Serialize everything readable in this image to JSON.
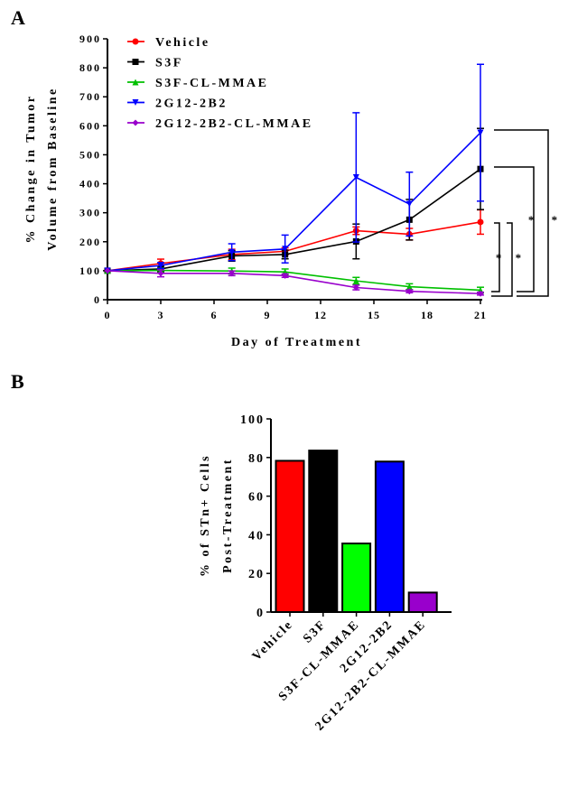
{
  "chart_data": [
    {
      "panel_label": "A",
      "type": "line",
      "xlabel": "Day of Treatment",
      "ylabel": [
        "% Change in Tumor",
        "Volume from Baseline"
      ],
      "xlim": [
        0,
        21
      ],
      "ylim": [
        0,
        900
      ],
      "xticks": [
        0,
        3,
        6,
        9,
        12,
        15,
        18,
        21
      ],
      "yticks": [
        0,
        100,
        200,
        300,
        400,
        500,
        600,
        700,
        800,
        900
      ],
      "x": [
        0,
        3,
        7,
        10,
        14,
        17,
        21
      ],
      "legend_position": "top-left",
      "series": [
        {
          "name": "Vehicle",
          "color": "#ff0000",
          "marker": "circle",
          "values": [
            100,
            125,
            156,
            167,
            238,
            226,
            268
          ],
          "errors": [
            0,
            15,
            18,
            12,
            13,
            20,
            42
          ]
        },
        {
          "name": "S3F",
          "color": "#000000",
          "marker": "square",
          "values": [
            100,
            106,
            151,
            156,
            201,
            276,
            451
          ],
          "errors": [
            0,
            10,
            18,
            15,
            60,
            70,
            140
          ]
        },
        {
          "name": "S3F-CL-MMAE",
          "color": "#00c000",
          "marker": "triangle-up",
          "values": [
            100,
            101,
            99,
            96,
            65,
            45,
            33
          ],
          "errors": [
            0,
            8,
            10,
            10,
            12,
            10,
            10
          ]
        },
        {
          "name": "2G12-2B2",
          "color": "#0000ff",
          "marker": "triangle-down",
          "values": [
            100,
            118,
            164,
            175,
            422,
            330,
            576
          ],
          "errors": [
            0,
            10,
            29,
            48,
            223,
            110,
            236
          ]
        },
        {
          "name": "2G12-2B2-CL-MMAE",
          "color": "#9900cc",
          "marker": "diamond",
          "values": [
            100,
            91,
            91,
            83,
            42,
            29,
            21
          ],
          "errors": [
            0,
            12,
            8,
            6,
            8,
            5,
            5
          ]
        }
      ],
      "annotations": [
        {
          "text": "* *",
          "compare": [
            "Vehicle",
            "S3F-CL-MMAE / 2G12-2B2-CL-MMAE"
          ]
        },
        {
          "text": "* *",
          "compare": [
            "S3F / 2G12-2B2",
            "S3F-CL-MMAE / 2G12-2B2-CL-MMAE"
          ]
        }
      ]
    },
    {
      "panel_label": "B",
      "type": "bar",
      "ylabel": [
        "% of STn+ Cells",
        "Post-Treatment"
      ],
      "ylim": [
        0,
        100
      ],
      "yticks": [
        0,
        20,
        40,
        60,
        80,
        100
      ],
      "categories": [
        "Vehicle",
        "S3F",
        "S3F-CL-MMAE",
        "2G12-2B2",
        "2G12-2B2-CL-MMAE"
      ],
      "values": [
        78.3,
        83.6,
        35.5,
        77.9,
        10.1
      ],
      "colors": [
        "#ff0000",
        "#000000",
        "#00ff00",
        "#0000ff",
        "#9900cc"
      ]
    }
  ]
}
